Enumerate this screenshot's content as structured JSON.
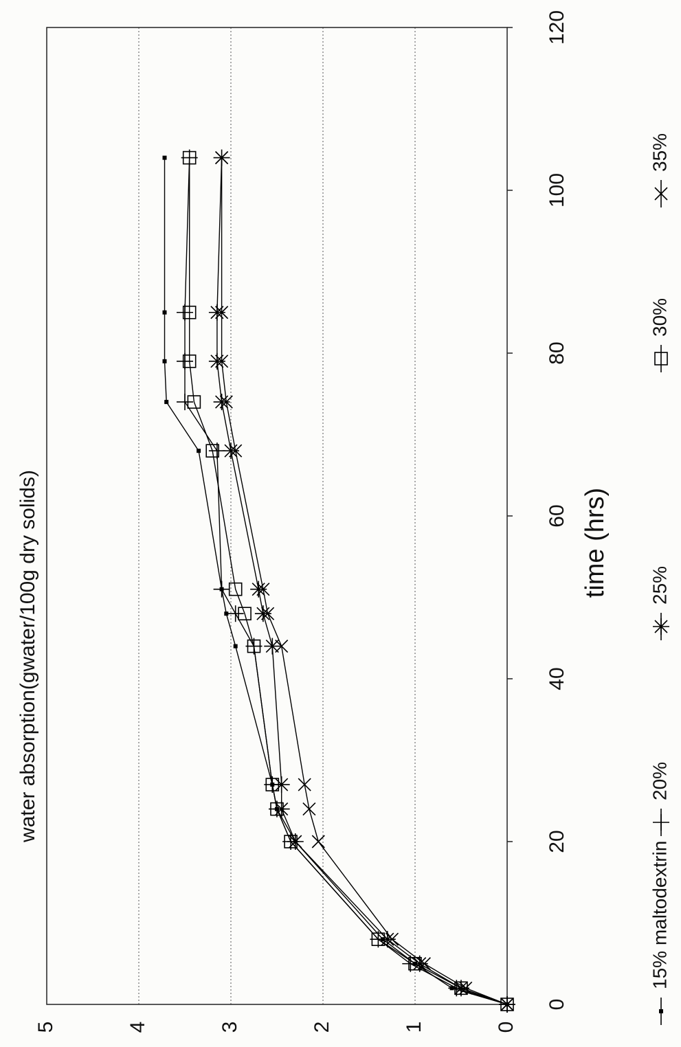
{
  "chart_data": {
    "type": "line",
    "title": "water absorption(gwater/100g dry solids)",
    "x_label": "time (hrs)",
    "x": [
      0,
      2,
      5,
      8,
      20,
      24,
      27,
      44,
      48,
      51,
      68,
      74,
      79,
      85,
      104
    ],
    "series": [
      {
        "name": "15% maltodextrin",
        "color": "#000000",
        "marker": "filled-square",
        "values": [
          0,
          0.6,
          1.0,
          1.35,
          2.3,
          2.5,
          2.55,
          2.95,
          3.05,
          3.1,
          3.35,
          3.7,
          3.72,
          3.72,
          3.72
        ]
      },
      {
        "name": "20%",
        "color": "#000000",
        "marker": "plus",
        "values": [
          0,
          0.55,
          1.05,
          1.4,
          2.35,
          2.5,
          2.55,
          2.75,
          2.95,
          3.1,
          3.15,
          3.5,
          3.5,
          3.5,
          3.45
        ]
      },
      {
        "name": "25%",
        "color": "#000000",
        "marker": "asterisk",
        "values": [
          0,
          0.5,
          0.95,
          1.3,
          2.3,
          2.45,
          2.45,
          2.55,
          2.65,
          2.7,
          3.0,
          3.1,
          3.15,
          3.15,
          3.1
        ]
      },
      {
        "name": "30%",
        "color": "#000000",
        "marker": "square",
        "values": [
          0,
          0.5,
          1.0,
          1.4,
          2.35,
          2.5,
          2.55,
          2.75,
          2.85,
          2.95,
          3.2,
          3.4,
          3.45,
          3.45,
          3.45
        ]
      },
      {
        "name": "35%",
        "color": "#000000",
        "marker": "cross",
        "values": [
          0,
          0.45,
          0.9,
          1.25,
          2.05,
          2.15,
          2.2,
          2.45,
          2.6,
          2.65,
          2.95,
          3.05,
          3.1,
          3.1,
          3.1
        ]
      }
    ],
    "xlim": [
      0,
      120
    ],
    "xticks": [
      0,
      20,
      40,
      60,
      80,
      100,
      120
    ],
    "ylim": [
      0,
      5
    ],
    "yticks": [
      0,
      1,
      2,
      3,
      4,
      5
    ],
    "grid": true,
    "rotated": true
  }
}
